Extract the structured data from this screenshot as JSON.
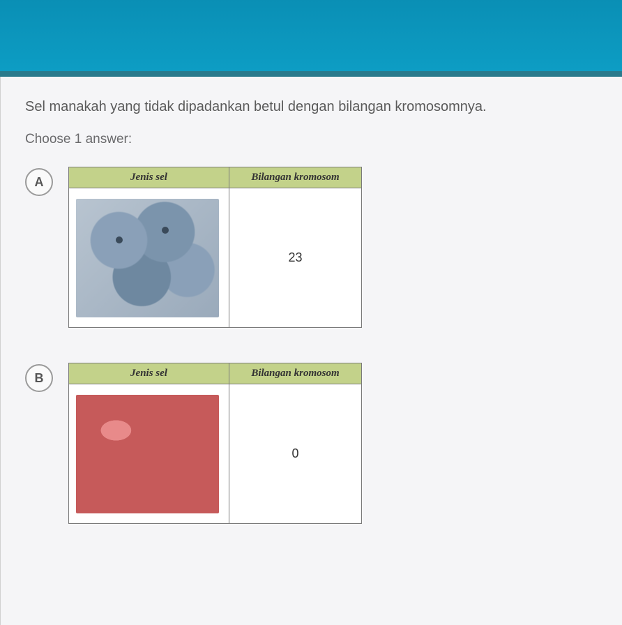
{
  "colors": {
    "banner_bg_top": "#0a8fb5",
    "banner_bg_bottom": "#0d9dc4",
    "page_bg": "#e8e8ea",
    "content_bg": "#f5f5f7",
    "table_header_bg": "#c3d28a",
    "table_border": "#7a7a7a",
    "text_body": "#5a5a5a",
    "bubble_border": "#9a9a9a"
  },
  "question": {
    "text": "Sel manakah yang tidak dipadankan betul dengan bilangan kromosomnya.",
    "instruction": "Choose 1 answer:"
  },
  "table_headers": {
    "cell_type": "Jenis sel",
    "chromosome_count": "Bilangan kromosom"
  },
  "options": [
    {
      "letter": "A",
      "image_desc": "microscopy-cheek-cells",
      "chromosome_value": "23"
    },
    {
      "letter": "B",
      "image_desc": "red-blood-cells",
      "chromosome_value": "0"
    }
  ]
}
